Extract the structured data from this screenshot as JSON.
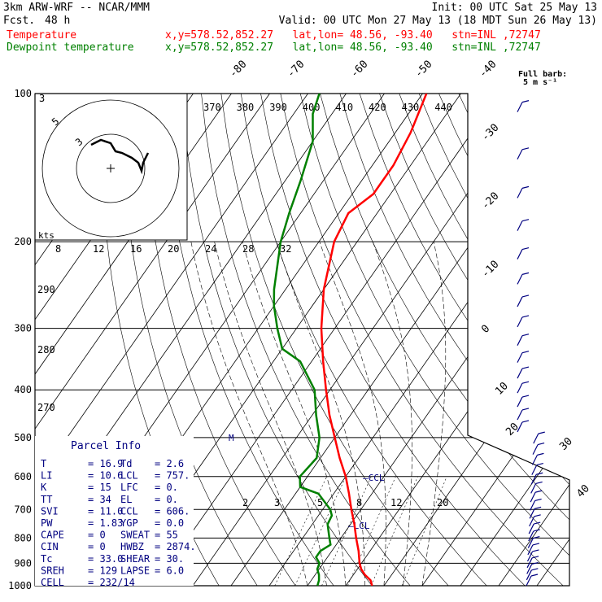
{
  "header": {
    "model": "3km ARW-WRF -- NCAR/MMM",
    "init": "Init: 00 UTC Sat 25 May 13",
    "fcst_label": "Fcst.",
    "fcst_value": "48 h",
    "valid": "Valid: 00 UTC Mon 27 May 13 (18 MDT Sun 26 May 13)",
    "temp_label": "Temperature",
    "temp_meta": "x,y=578.52,852.27   lat,lon= 48.56, -93.40   stn=INL ,72747",
    "dew_label": "Dewpoint temperature",
    "dew_meta": "x,y=578.52,852.27   lat,lon= 48.56, -93.40   stn=INL ,72747"
  },
  "colors": {
    "temperature": "#ff0000",
    "dewpoint": "#008000",
    "index_text": "#000080",
    "frame": "#000000"
  },
  "wind_legend": {
    "line1": "Full barb:",
    "line2": "5 m s⁻¹"
  },
  "parcel_info": {
    "title": "Parcel Info",
    "rows": [
      {
        "l1": "T",
        "v1": "16.9",
        "l2": "Td",
        "v2": "2.6"
      },
      {
        "l1": "LI",
        "v1": "10.6",
        "l2": "LCL",
        "v2": "757."
      },
      {
        "l1": "K",
        "v1": "15",
        "l2": "LFC",
        "v2": "0."
      },
      {
        "l1": "TT",
        "v1": "34",
        "l2": "EL",
        "v2": "0."
      },
      {
        "l1": "SVI",
        "v1": "11.0",
        "l2": "CCL",
        "v2": "606."
      },
      {
        "l1": "PW",
        "v1": "1.83",
        "l2": "YGP",
        "v2": "0.0"
      },
      {
        "l1": "CAPE",
        "v1": "0",
        "l2": "SWEAT",
        "v2": "55"
      },
      {
        "l1": "CIN",
        "v1": "0",
        "l2": "HWBZ",
        "v2": "2874."
      },
      {
        "l1": "Tc",
        "v1": "33.0",
        "l2": "SHEAR",
        "v2": "30."
      },
      {
        "l1": "SREH",
        "v1": "129",
        "l2": "LAPSE",
        "v2": "6.0"
      },
      {
        "l1": "CELL",
        "v1": "232/14",
        "l2": "",
        "v2": ""
      }
    ]
  },
  "chart_data": {
    "type": "line",
    "subtype": "skew-T log-P sounding",
    "pressure_levels": [
      1000,
      900,
      800,
      700,
      600,
      500,
      400,
      300,
      200,
      100
    ],
    "pressure_labels": [
      "1000",
      "900",
      "800",
      "700",
      "600",
      "500",
      "400",
      "300",
      "200",
      "100"
    ],
    "isotherm_labels": [
      "-80",
      "-70",
      "-60",
      "-50",
      "-40",
      "-30",
      "-20",
      "-10",
      "0",
      "10",
      "20",
      "30",
      "40"
    ],
    "theta_labels": [
      "370",
      "380",
      "390",
      "400",
      "410",
      "420",
      "430",
      "440"
    ],
    "theta_left_labels": [
      "290",
      "280",
      "270"
    ],
    "mixing_ratio_labels": [
      "2",
      "3",
      "5",
      "8",
      "12",
      "20"
    ],
    "level_markers": [
      "M",
      "CCL",
      "LCL"
    ],
    "series": [
      {
        "name": "Temperature",
        "points": [
          [
            1000,
            16.9
          ],
          [
            975,
            15.5
          ],
          [
            950,
            13.0
          ],
          [
            925,
            11.0
          ],
          [
            900,
            9.5
          ],
          [
            850,
            7.0
          ],
          [
            800,
            4.0
          ],
          [
            750,
            1.0
          ],
          [
            700,
            -2.5
          ],
          [
            650,
            -6.0
          ],
          [
            600,
            -10.0
          ],
          [
            550,
            -15.0
          ],
          [
            500,
            -20.0
          ],
          [
            450,
            -25.5
          ],
          [
            400,
            -31.0
          ],
          [
            350,
            -37.0
          ],
          [
            300,
            -43.5
          ],
          [
            250,
            -50.0
          ],
          [
            200,
            -56.0
          ],
          [
            175,
            -57.5
          ],
          [
            160,
            -54.5
          ],
          [
            140,
            -54.5
          ],
          [
            120,
            -56.0
          ],
          [
            100,
            -59.0
          ]
        ]
      },
      {
        "name": "Dewpoint temperature",
        "points": [
          [
            1000,
            2.6
          ],
          [
            975,
            2.0
          ],
          [
            950,
            1.0
          ],
          [
            925,
            -0.5
          ],
          [
            900,
            -1.0
          ],
          [
            875,
            -3.0
          ],
          [
            850,
            -3.0
          ],
          [
            825,
            -1.5
          ],
          [
            800,
            -3.0
          ],
          [
            750,
            -6.0
          ],
          [
            720,
            -6.5
          ],
          [
            700,
            -8.0
          ],
          [
            650,
            -14.0
          ],
          [
            630,
            -20.0
          ],
          [
            600,
            -22.0
          ],
          [
            550,
            -21.0
          ],
          [
            500,
            -24.0
          ],
          [
            450,
            -29.0
          ],
          [
            400,
            -34.0
          ],
          [
            350,
            -43.0
          ],
          [
            330,
            -50.0
          ],
          [
            300,
            -55.0
          ],
          [
            270,
            -60.0
          ],
          [
            250,
            -63.0
          ],
          [
            200,
            -70.0
          ],
          [
            175,
            -73.0
          ],
          [
            150,
            -76.0
          ],
          [
            125,
            -80.0
          ],
          [
            110,
            -85.0
          ],
          [
            100,
            -87.0
          ]
        ]
      }
    ],
    "hodograph": {
      "axis_unit": "kts",
      "ring_labels": [
        "5",
        "3"
      ],
      "speed_labels": [
        "8",
        "12",
        "16",
        "20",
        "24",
        "28",
        "32"
      ]
    }
  }
}
